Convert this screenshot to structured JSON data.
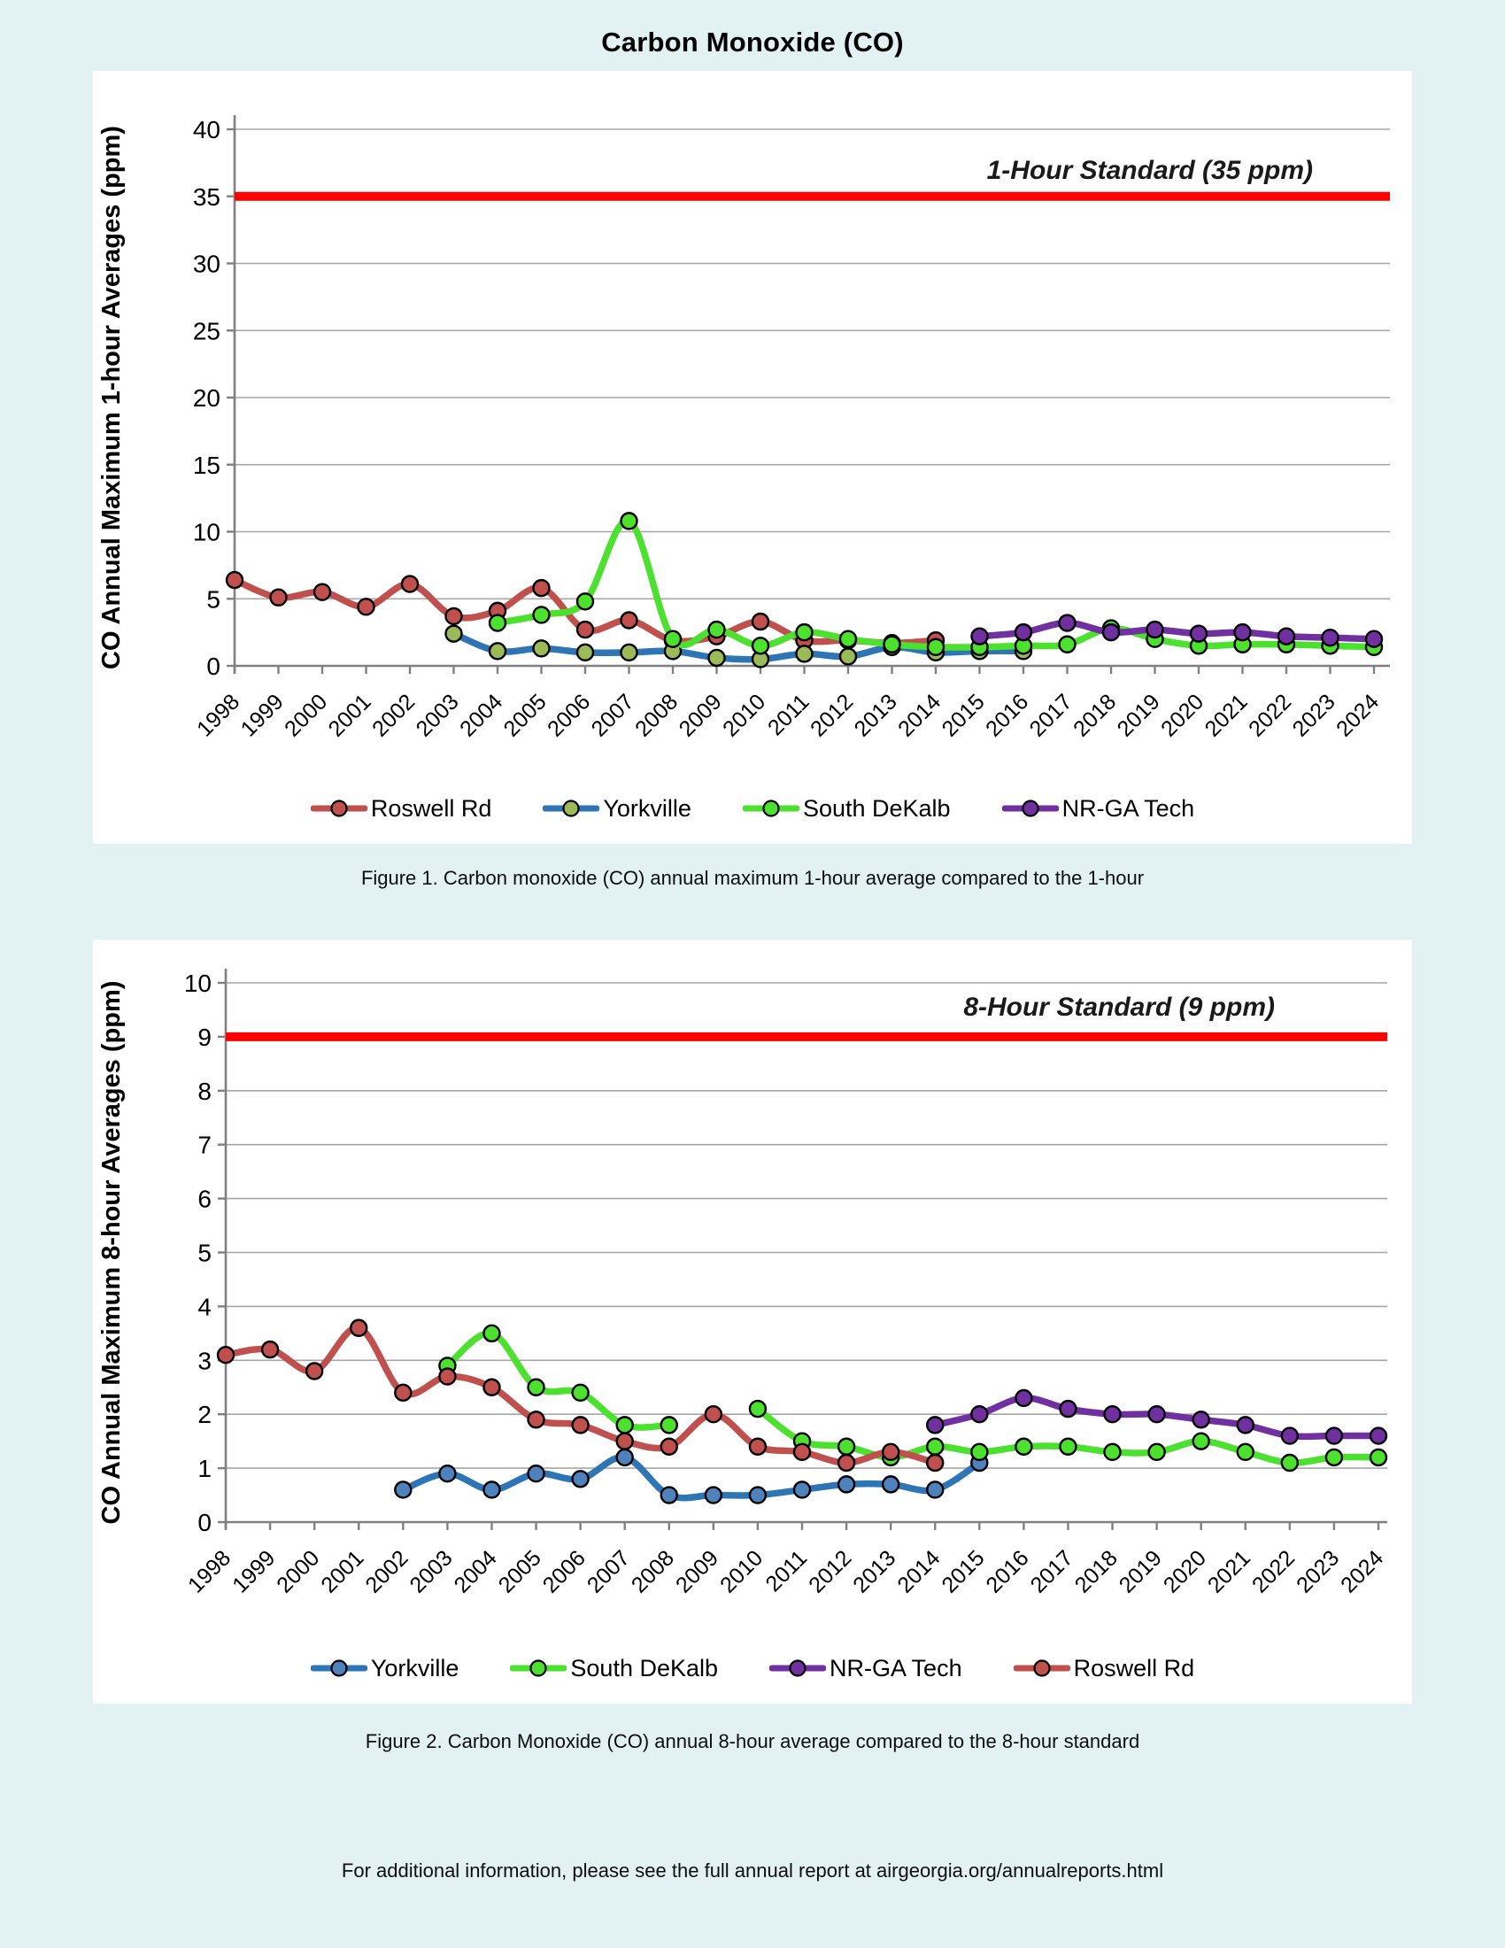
{
  "page": {
    "title": "Carbon Monoxide (CO)",
    "figure1_caption": "Figure 1. Carbon monoxide (CO) annual maximum 1-hour average compared to the 1-hour",
    "figure2_caption": "Figure 2. Carbon Monoxide (CO) annual 8-hour average compared to the 8-hour standard",
    "footer": "For additional information, please see the full annual report at airgeorgia.org/annualreports.html",
    "background_color": "#e2f2f2",
    "panel_color": "#ffffff"
  },
  "colors": {
    "grid": "#a6a6a6",
    "axis": "#808080",
    "standard_line": "#ff0000",
    "roswell_rd": "#c0504d",
    "yorkville_line": "#2e75b6",
    "yorkville_marker_fig1": "#9bbb59",
    "yorkville_marker_fig2": "#4f81bd",
    "south_dekalb": "#4ce02f",
    "nr_ga_tech": "#7030a0"
  },
  "chart_data": [
    {
      "id": "figure1",
      "type": "line",
      "title": "",
      "xlabel": "",
      "ylabel": "CO Annual Maximum 1-hour Averages (ppm)",
      "ylim": [
        0,
        40
      ],
      "ytick_step": 5,
      "grid": true,
      "legend_position": "bottom",
      "standard_line": {
        "value": 35,
        "label": "1-Hour Standard (35 ppm)",
        "color": "#ff0000"
      },
      "categories": [
        1998,
        1999,
        2000,
        2001,
        2002,
        2003,
        2004,
        2005,
        2006,
        2007,
        2008,
        2009,
        2010,
        2011,
        2012,
        2013,
        2014,
        2015,
        2016,
        2017,
        2018,
        2019,
        2020,
        2021,
        2022,
        2023,
        2024
      ],
      "series": [
        {
          "name": "Roswell Rd",
          "color": "#c0504d",
          "marker_color": "#c0504d",
          "values": [
            6.4,
            5.1,
            5.5,
            4.4,
            6.1,
            3.7,
            4.1,
            5.8,
            2.7,
            3.4,
            1.9,
            2.2,
            3.3,
            1.9,
            1.9,
            1.7,
            1.9,
            null,
            null,
            null,
            null,
            null,
            null,
            null,
            null,
            null,
            null
          ]
        },
        {
          "name": "Yorkville",
          "color": "#2e75b6",
          "marker_color": "#9bbb59",
          "values": [
            null,
            null,
            null,
            null,
            null,
            2.4,
            1.1,
            1.3,
            1.0,
            1.0,
            1.1,
            0.6,
            0.5,
            0.9,
            0.7,
            1.4,
            1.0,
            1.1,
            1.1,
            null,
            null,
            null,
            null,
            null,
            null,
            null,
            null
          ]
        },
        {
          "name": "South DeKalb",
          "color": "#4ce02f",
          "marker_color": "#4ce02f",
          "values": [
            null,
            null,
            null,
            null,
            null,
            null,
            3.2,
            3.8,
            4.8,
            10.8,
            2.0,
            2.7,
            1.5,
            2.5,
            2.0,
            1.6,
            1.4,
            1.4,
            1.5,
            1.6,
            2.8,
            2.0,
            1.5,
            1.6,
            1.6,
            1.5,
            1.4
          ]
        },
        {
          "name": "NR-GA Tech",
          "color": "#7030a0",
          "marker_color": "#7030a0",
          "values": [
            null,
            null,
            null,
            null,
            null,
            null,
            null,
            null,
            null,
            null,
            null,
            null,
            null,
            null,
            null,
            null,
            null,
            2.2,
            2.5,
            3.2,
            2.5,
            2.7,
            2.4,
            2.5,
            2.2,
            2.1,
            2.0
          ]
        }
      ]
    },
    {
      "id": "figure2",
      "type": "line",
      "title": "",
      "xlabel": "",
      "ylabel": "CO Annual Maximum 8-hour Averages (ppm)",
      "ylim": [
        0,
        10
      ],
      "ytick_step": 1,
      "grid": true,
      "legend_position": "bottom",
      "standard_line": {
        "value": 9,
        "label": "8-Hour Standard (9 ppm)",
        "color": "#ff0000"
      },
      "categories": [
        1998,
        1999,
        2000,
        2001,
        2002,
        2003,
        2004,
        2005,
        2006,
        2007,
        2008,
        2009,
        2010,
        2011,
        2012,
        2013,
        2014,
        2015,
        2016,
        2017,
        2018,
        2019,
        2020,
        2021,
        2022,
        2023,
        2024
      ],
      "series": [
        {
          "name": "Yorkville",
          "color": "#2e75b6",
          "marker_color": "#4f81bd",
          "values": [
            null,
            null,
            null,
            null,
            0.6,
            0.9,
            0.6,
            0.9,
            0.8,
            1.2,
            0.5,
            0.5,
            0.5,
            0.6,
            0.7,
            0.7,
            0.6,
            1.1,
            null,
            null,
            null,
            null,
            null,
            null,
            null,
            null,
            null
          ]
        },
        {
          "name": "South DeKalb",
          "color": "#4ce02f",
          "marker_color": "#4ce02f",
          "values": [
            null,
            null,
            null,
            null,
            null,
            2.9,
            3.5,
            2.5,
            2.4,
            1.8,
            1.8,
            null,
            2.1,
            1.5,
            1.4,
            1.2,
            1.4,
            1.3,
            1.4,
            1.4,
            1.3,
            1.3,
            1.5,
            1.3,
            1.1,
            1.2,
            1.2
          ]
        },
        {
          "name": "NR-GA Tech",
          "color": "#7030a0",
          "marker_color": "#7030a0",
          "values": [
            null,
            null,
            null,
            null,
            null,
            null,
            null,
            null,
            null,
            null,
            null,
            null,
            null,
            null,
            null,
            null,
            1.8,
            2.0,
            2.3,
            2.1,
            2.0,
            2.0,
            1.9,
            1.8,
            1.6,
            1.6,
            1.6
          ]
        },
        {
          "name": "Roswell Rd",
          "color": "#c0504d",
          "marker_color": "#c0504d",
          "values": [
            3.1,
            3.2,
            2.8,
            3.6,
            2.4,
            2.7,
            2.5,
            1.9,
            1.8,
            1.5,
            1.4,
            2.0,
            1.4,
            1.3,
            1.1,
            1.3,
            1.1,
            null,
            null,
            null,
            null,
            null,
            null,
            null,
            null,
            null,
            null
          ]
        }
      ]
    }
  ]
}
